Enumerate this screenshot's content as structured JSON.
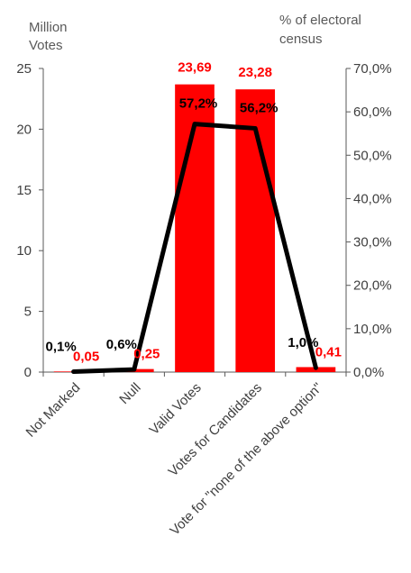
{
  "chart_data": {
    "type": "bar",
    "categories": [
      "Not Marked",
      "Null",
      "Valid Votes",
      "Votes for Candidates",
      "Vote for \"none of the above option\""
    ],
    "series": [
      {
        "type": "bar",
        "axis": "left",
        "values": [
          0.05,
          0.25,
          23.69,
          23.28,
          0.41
        ],
        "labels": [
          "0,05",
          "0,25",
          "23,69",
          "23,28",
          "0,41"
        ]
      },
      {
        "type": "line",
        "axis": "right",
        "values": [
          0.1,
          0.6,
          57.2,
          56.2,
          1.0
        ],
        "labels": [
          "0,1%",
          "0,6%",
          "57,2%",
          "56,2%",
          "1,0%"
        ]
      }
    ],
    "left_axis": {
      "title_lines": [
        "Million",
        "Votes"
      ],
      "ylim": [
        0,
        25
      ],
      "ticks": [
        "0",
        "5",
        "10",
        "15",
        "20",
        "25"
      ]
    },
    "right_axis": {
      "title_lines": [
        "% of electoral",
        "census"
      ],
      "ylim": [
        0,
        70
      ],
      "ticks": [
        "0,0%",
        "10,0%",
        "20,0%",
        "30,0%",
        "40,0%",
        "50,0%",
        "60,0%",
        "70,0%"
      ]
    },
    "colors": {
      "bar": "#ff0000",
      "line": "#000000",
      "bar_label": "#ff0000",
      "line_label": "#000000",
      "axis": "#404040"
    },
    "grid": false,
    "legend": "none"
  }
}
